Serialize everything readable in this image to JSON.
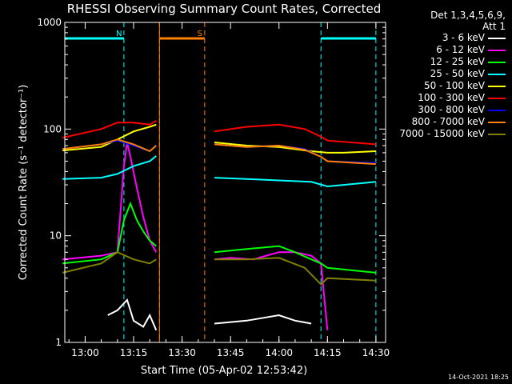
{
  "chart_data": {
    "type": "line",
    "title": "RHESSI Observing Summary Count Rates, Corrected",
    "xlabel": "Start Time (05-Apr-02 12:53:42)",
    "ylabel": "Corrected Count Rate (s⁻¹ detector⁻¹)",
    "yscale": "log",
    "ylim": [
      1,
      1000
    ],
    "xlim": [
      "12:53:42",
      "14:33:00"
    ],
    "y_ticks": [
      "1",
      "10",
      "100",
      "1000"
    ],
    "x_ticks": [
      "13:00",
      "13:15",
      "13:30",
      "13:45",
      "14:00",
      "14:15",
      "14:30"
    ],
    "legend_title": [
      "Det 1,3,4,5,6,9,",
      "Att 1"
    ],
    "attenuator_state_label": "Att 1",
    "flags": [
      {
        "label": "N",
        "color": "#00ffff",
        "intervals": [
          [
            "12:53:42",
            "13:12:00"
          ],
          [
            "14:13:00",
            "14:30:00"
          ]
        ]
      },
      {
        "label": "S",
        "color": "#ff8000",
        "intervals": [
          [
            "13:23:00",
            "13:37:00"
          ]
        ]
      }
    ],
    "data_gap": [
      "13:23:00",
      "13:39:00"
    ],
    "series": [
      {
        "name": "3 - 6 keV",
        "color": "#ffffff",
        "points": [
          [
            "13:07",
            1.8
          ],
          [
            "13:10",
            2.0
          ],
          [
            "13:13",
            2.5
          ],
          [
            "13:15",
            1.6
          ],
          [
            "13:18",
            1.4
          ],
          [
            "13:20",
            1.8
          ],
          [
            "13:22",
            1.3
          ],
          [
            "13:40",
            1.5
          ],
          [
            "13:50",
            1.6
          ],
          [
            "14:00",
            1.8
          ],
          [
            "14:05",
            1.6
          ],
          [
            "14:10",
            1.5
          ]
        ]
      },
      {
        "name": "6 - 12 keV",
        "color": "#ff00ff",
        "points": [
          [
            "12:53",
            6
          ],
          [
            "13:05",
            6.5
          ],
          [
            "13:10",
            7
          ],
          [
            "13:12",
            45
          ],
          [
            "13:13",
            75
          ],
          [
            "13:14",
            55
          ],
          [
            "13:16",
            28
          ],
          [
            "13:18",
            15
          ],
          [
            "13:20",
            9
          ],
          [
            "13:22",
            7
          ],
          [
            "13:40",
            6
          ],
          [
            "13:45",
            6.2
          ],
          [
            "13:52",
            6
          ],
          [
            "14:00",
            7
          ],
          [
            "14:05",
            7
          ],
          [
            "14:10",
            6.5
          ],
          [
            "14:13",
            5.5
          ],
          [
            "14:15",
            1.3
          ]
        ]
      },
      {
        "name": "12 - 25 keV",
        "color": "#00ff00",
        "points": [
          [
            "12:53",
            5.5
          ],
          [
            "13:05",
            6
          ],
          [
            "13:10",
            7
          ],
          [
            "13:12",
            14
          ],
          [
            "13:14",
            20
          ],
          [
            "13:16",
            14
          ],
          [
            "13:18",
            11
          ],
          [
            "13:20",
            9
          ],
          [
            "13:22",
            8
          ],
          [
            "13:40",
            7
          ],
          [
            "13:50",
            7.5
          ],
          [
            "14:00",
            8
          ],
          [
            "14:05",
            7
          ],
          [
            "14:10",
            6
          ],
          [
            "14:13",
            5.5
          ],
          [
            "14:15",
            5
          ],
          [
            "14:30",
            4.5
          ]
        ]
      },
      {
        "name": "25 - 50 keV",
        "color": "#00ffff",
        "points": [
          [
            "12:53",
            34
          ],
          [
            "13:05",
            35
          ],
          [
            "13:10",
            38
          ],
          [
            "13:15",
            45
          ],
          [
            "13:20",
            50
          ],
          [
            "13:22",
            56
          ],
          [
            "13:40",
            35
          ],
          [
            "13:50",
            34
          ],
          [
            "14:00",
            33
          ],
          [
            "14:10",
            32
          ],
          [
            "14:15",
            29
          ],
          [
            "14:20",
            30
          ],
          [
            "14:30",
            32
          ]
        ]
      },
      {
        "name": "50 - 100 keV",
        "color": "#ffff00",
        "points": [
          [
            "12:53",
            63
          ],
          [
            "13:05",
            68
          ],
          [
            "13:10",
            80
          ],
          [
            "13:15",
            95
          ],
          [
            "13:20",
            105
          ],
          [
            "13:22",
            110
          ],
          [
            "13:40",
            75
          ],
          [
            "13:50",
            70
          ],
          [
            "14:00",
            68
          ],
          [
            "14:10",
            62
          ],
          [
            "14:15",
            60
          ],
          [
            "14:20",
            60
          ],
          [
            "14:30",
            62
          ]
        ]
      },
      {
        "name": "100 - 300 keV",
        "color": "#ff0000",
        "points": [
          [
            "12:53",
            83
          ],
          [
            "13:05",
            100
          ],
          [
            "13:10",
            115
          ],
          [
            "13:15",
            115
          ],
          [
            "13:20",
            110
          ],
          [
            "13:22",
            120
          ],
          [
            "13:40",
            95
          ],
          [
            "13:50",
            105
          ],
          [
            "14:00",
            110
          ],
          [
            "14:08",
            100
          ],
          [
            "14:13",
            85
          ],
          [
            "14:15",
            78
          ],
          [
            "14:30",
            72
          ]
        ]
      },
      {
        "name": "300 - 800 keV",
        "color": "#0000ff",
        "points": [
          [
            "12:53",
            65
          ],
          [
            "13:05",
            72
          ],
          [
            "13:10",
            78
          ],
          [
            "13:15",
            70
          ],
          [
            "13:20",
            62
          ],
          [
            "13:22",
            70
          ],
          [
            "13:40",
            72
          ],
          [
            "13:50",
            68
          ],
          [
            "14:00",
            70
          ],
          [
            "14:08",
            65
          ],
          [
            "14:13",
            55
          ],
          [
            "14:15",
            50
          ],
          [
            "14:30",
            48
          ]
        ]
      },
      {
        "name": "800 - 7000 keV",
        "color": "#ff8000",
        "points": [
          [
            "12:53",
            65
          ],
          [
            "13:05",
            72
          ],
          [
            "13:10",
            80
          ],
          [
            "13:15",
            72
          ],
          [
            "13:20",
            62
          ],
          [
            "13:22",
            70
          ],
          [
            "13:40",
            72
          ],
          [
            "13:50",
            68
          ],
          [
            "14:00",
            70
          ],
          [
            "14:08",
            64
          ],
          [
            "14:13",
            55
          ],
          [
            "14:15",
            50
          ],
          [
            "14:30",
            47
          ]
        ]
      },
      {
        "name": "7000 - 15000 keV",
        "color": "#808000",
        "points": [
          [
            "12:53",
            4.5
          ],
          [
            "13:05",
            5.5
          ],
          [
            "13:10",
            7
          ],
          [
            "13:15",
            6
          ],
          [
            "13:20",
            5.5
          ],
          [
            "13:22",
            6
          ],
          [
            "13:40",
            6
          ],
          [
            "13:50",
            6
          ],
          [
            "14:00",
            6.2
          ],
          [
            "14:08",
            5
          ],
          [
            "14:13",
            3.5
          ],
          [
            "14:15",
            4
          ],
          [
            "14:30",
            3.8
          ]
        ]
      }
    ]
  },
  "timestamp": "14-Oct-2021 18:25"
}
